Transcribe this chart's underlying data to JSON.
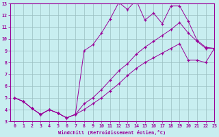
{
  "title": "",
  "xlabel": "Windchill (Refroidissement éolien,°C)",
  "ylabel": "",
  "background_color": "#c8eef0",
  "grid_color": "#9bbfc2",
  "line_color": "#990099",
  "xlim": [
    -0.5,
    23
  ],
  "ylim": [
    3,
    13
  ],
  "xticks": [
    0,
    1,
    2,
    3,
    4,
    5,
    6,
    7,
    8,
    9,
    10,
    11,
    12,
    13,
    14,
    15,
    16,
    17,
    18,
    19,
    20,
    21,
    22,
    23
  ],
  "yticks": [
    3,
    4,
    5,
    6,
    7,
    8,
    9,
    10,
    11,
    12,
    13
  ],
  "line1_x": [
    0,
    1,
    2,
    3,
    4,
    5,
    6,
    7,
    8,
    9,
    10,
    11,
    12,
    13,
    14,
    15,
    16,
    17,
    18,
    19,
    20,
    21,
    22,
    23
  ],
  "line1_y": [
    5.0,
    4.7,
    4.1,
    3.6,
    4.0,
    3.7,
    3.3,
    3.6,
    9.0,
    9.5,
    10.5,
    11.7,
    13.1,
    12.5,
    13.3,
    11.6,
    12.2,
    11.3,
    12.8,
    12.8,
    11.5,
    9.9,
    9.3,
    9.2
  ],
  "line2_x": [
    0,
    1,
    2,
    3,
    4,
    5,
    6,
    7,
    8,
    9,
    10,
    11,
    12,
    13,
    14,
    15,
    16,
    17,
    18,
    19,
    20,
    21,
    22,
    23
  ],
  "line2_y": [
    5.0,
    4.7,
    4.1,
    3.6,
    4.0,
    3.7,
    3.3,
    3.6,
    4.5,
    5.0,
    5.7,
    6.5,
    7.3,
    7.9,
    8.7,
    9.3,
    9.8,
    10.3,
    10.8,
    11.4,
    10.5,
    9.8,
    9.2,
    9.2
  ],
  "line3_x": [
    0,
    1,
    2,
    3,
    4,
    5,
    6,
    7,
    8,
    9,
    10,
    11,
    12,
    13,
    14,
    15,
    16,
    17,
    18,
    19,
    20,
    21,
    22,
    23
  ],
  "line3_y": [
    5.0,
    4.7,
    4.1,
    3.6,
    4.0,
    3.7,
    3.3,
    3.6,
    4.0,
    4.5,
    5.0,
    5.6,
    6.2,
    6.9,
    7.5,
    8.0,
    8.4,
    8.8,
    9.2,
    9.6,
    8.2,
    8.2,
    8.0,
    9.2
  ]
}
